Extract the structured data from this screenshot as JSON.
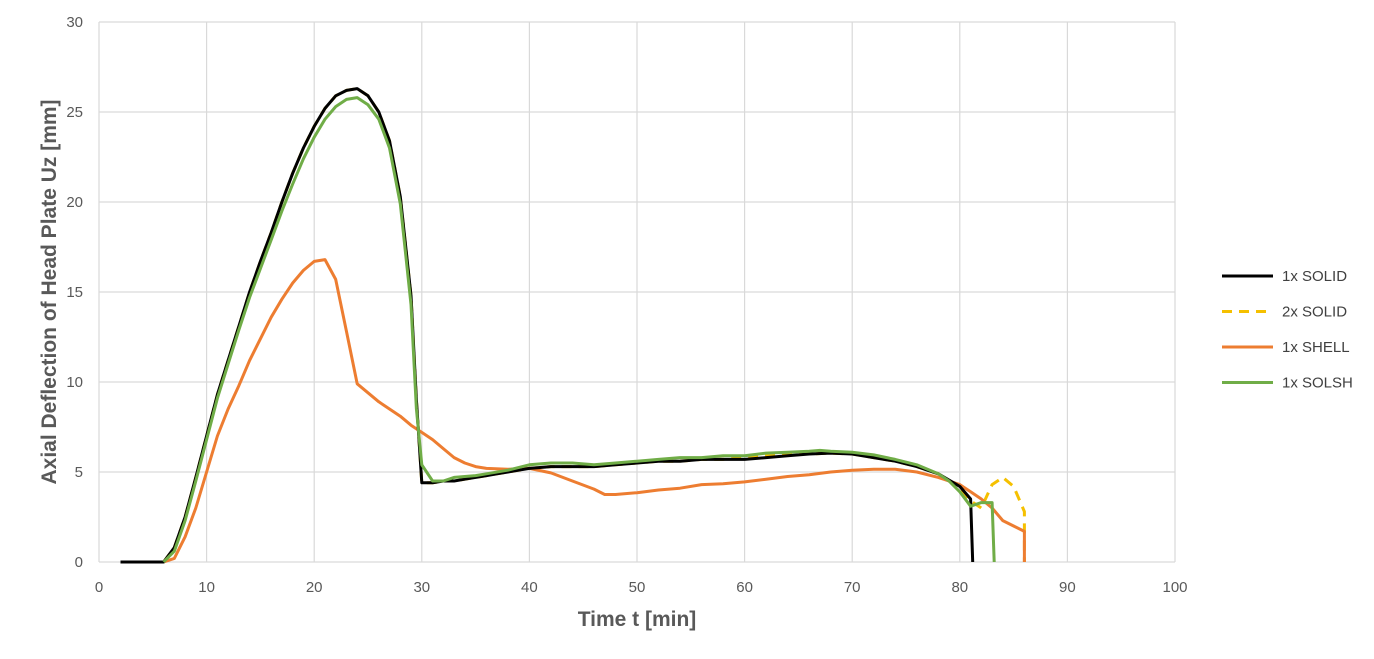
{
  "chart_data": {
    "type": "line",
    "title": "",
    "xlabel": "Time t [min]",
    "ylabel": "Axial Deflection of Head Plate Uz [mm]",
    "xlim": [
      0,
      100
    ],
    "ylim": [
      0,
      30
    ],
    "x_ticks": [
      "0",
      "10",
      "20",
      "30",
      "40",
      "50",
      "60",
      "70",
      "80",
      "90",
      "100"
    ],
    "y_ticks": [
      "0",
      "5",
      "10",
      "15",
      "20",
      "25",
      "30"
    ],
    "grid": true,
    "legend_position": "right",
    "series": [
      {
        "name": "1x SOLID",
        "color": "#000000",
        "dash": "solid",
        "points": [
          [
            2,
            0
          ],
          [
            6,
            0
          ],
          [
            7,
            0.8
          ],
          [
            8,
            2.5
          ],
          [
            9,
            4.7
          ],
          [
            10,
            7
          ],
          [
            11,
            9.3
          ],
          [
            12,
            11.2
          ],
          [
            13,
            13.1
          ],
          [
            14,
            15
          ],
          [
            15,
            16.7
          ],
          [
            16,
            18.3
          ],
          [
            17,
            20
          ],
          [
            18,
            21.6
          ],
          [
            19,
            23
          ],
          [
            20,
            24.2
          ],
          [
            21,
            25.2
          ],
          [
            22,
            25.9
          ],
          [
            23,
            26.2
          ],
          [
            24,
            26.3
          ],
          [
            25,
            25.9
          ],
          [
            26,
            25
          ],
          [
            27,
            23.4
          ],
          [
            28,
            20.3
          ],
          [
            29,
            14.8
          ],
          [
            29.5,
            9
          ],
          [
            30,
            4.4
          ],
          [
            31,
            4.4
          ],
          [
            32,
            4.5
          ],
          [
            33,
            4.5
          ],
          [
            34,
            4.6
          ],
          [
            35,
            4.7
          ],
          [
            36,
            4.8
          ],
          [
            37,
            4.9
          ],
          [
            38,
            5
          ],
          [
            39,
            5.1
          ],
          [
            40,
            5.2
          ],
          [
            42,
            5.3
          ],
          [
            44,
            5.3
          ],
          [
            46,
            5.3
          ],
          [
            48,
            5.4
          ],
          [
            50,
            5.5
          ],
          [
            52,
            5.6
          ],
          [
            54,
            5.6
          ],
          [
            56,
            5.7
          ],
          [
            58,
            5.7
          ],
          [
            60,
            5.7
          ],
          [
            62,
            5.8
          ],
          [
            64,
            5.9
          ],
          [
            66,
            6
          ],
          [
            68,
            6.05
          ],
          [
            70,
            6
          ],
          [
            72,
            5.8
          ],
          [
            74,
            5.6
          ],
          [
            76,
            5.3
          ],
          [
            78,
            4.9
          ],
          [
            80,
            4.2
          ],
          [
            81,
            3.5
          ],
          [
            81.2,
            0
          ]
        ]
      },
      {
        "name": "2x SOLID",
        "color": "#F5C000",
        "dash": "dashed",
        "points": [
          [
            6,
            0
          ],
          [
            7,
            0.8
          ],
          [
            8,
            2.5
          ],
          [
            9,
            4.7
          ],
          [
            10,
            7
          ],
          [
            11,
            9.3
          ],
          [
            12,
            11.2
          ],
          [
            13,
            13.1
          ],
          [
            14,
            15
          ],
          [
            15,
            16.7
          ],
          [
            16,
            18.3
          ],
          [
            17,
            20
          ],
          [
            18,
            21.6
          ],
          [
            19,
            23
          ],
          [
            20,
            24.2
          ],
          [
            21,
            25.2
          ],
          [
            22,
            25.9
          ],
          [
            23,
            26.2
          ],
          [
            24,
            26.3
          ],
          [
            25,
            25.9
          ],
          [
            26,
            25
          ],
          [
            27,
            23.4
          ],
          [
            28,
            20.3
          ],
          [
            29,
            14.8
          ],
          [
            29.5,
            9
          ],
          [
            30,
            4.4
          ],
          [
            31,
            4.4
          ],
          [
            32,
            4.5
          ],
          [
            33,
            4.5
          ],
          [
            34,
            4.6
          ],
          [
            35,
            4.7
          ],
          [
            36,
            4.8
          ],
          [
            37,
            4.9
          ],
          [
            38,
            5
          ],
          [
            39,
            5.1
          ],
          [
            40,
            5.2
          ],
          [
            42,
            5.3
          ],
          [
            44,
            5.3
          ],
          [
            46,
            5.3
          ],
          [
            48,
            5.4
          ],
          [
            50,
            5.5
          ],
          [
            52,
            5.6
          ],
          [
            54,
            5.6
          ],
          [
            56,
            5.7
          ],
          [
            58,
            5.7
          ],
          [
            60,
            5.8
          ],
          [
            62,
            5.9
          ],
          [
            64,
            6
          ],
          [
            66,
            6
          ],
          [
            68,
            6.05
          ],
          [
            70,
            6
          ],
          [
            72,
            5.8
          ],
          [
            74,
            5.6
          ],
          [
            76,
            5.3
          ],
          [
            78,
            4.9
          ],
          [
            80,
            4.1
          ],
          [
            81,
            3.4
          ],
          [
            82,
            3
          ],
          [
            83,
            4.3
          ],
          [
            84,
            4.7
          ],
          [
            85,
            4.2
          ],
          [
            86,
            2.8
          ],
          [
            86,
            0
          ]
        ]
      },
      {
        "name": "1x SHELL",
        "color": "#ED7D31",
        "dash": "solid",
        "points": [
          [
            6,
            0
          ],
          [
            7,
            0.2
          ],
          [
            8,
            1.4
          ],
          [
            9,
            3
          ],
          [
            10,
            5
          ],
          [
            11,
            7
          ],
          [
            12,
            8.5
          ],
          [
            13,
            9.8
          ],
          [
            14,
            11.2
          ],
          [
            15,
            12.4
          ],
          [
            16,
            13.6
          ],
          [
            17,
            14.6
          ],
          [
            18,
            15.5
          ],
          [
            19,
            16.2
          ],
          [
            20,
            16.7
          ],
          [
            21,
            16.8
          ],
          [
            22,
            15.7
          ],
          [
            23,
            12.8
          ],
          [
            24,
            9.9
          ],
          [
            25,
            9.4
          ],
          [
            26,
            8.9
          ],
          [
            27,
            8.5
          ],
          [
            28,
            8.1
          ],
          [
            29,
            7.6
          ],
          [
            30,
            7.2
          ],
          [
            31,
            6.8
          ],
          [
            32,
            6.3
          ],
          [
            33,
            5.8
          ],
          [
            34,
            5.5
          ],
          [
            35,
            5.3
          ],
          [
            36,
            5.2
          ],
          [
            38,
            5.15
          ],
          [
            40,
            5.2
          ],
          [
            42,
            4.95
          ],
          [
            44,
            4.5
          ],
          [
            46,
            4.05
          ],
          [
            47,
            3.75
          ],
          [
            48,
            3.75
          ],
          [
            50,
            3.85
          ],
          [
            52,
            4
          ],
          [
            54,
            4.1
          ],
          [
            56,
            4.3
          ],
          [
            58,
            4.35
          ],
          [
            60,
            4.45
          ],
          [
            62,
            4.6
          ],
          [
            64,
            4.75
          ],
          [
            66,
            4.85
          ],
          [
            68,
            5
          ],
          [
            70,
            5.1
          ],
          [
            72,
            5.15
          ],
          [
            74,
            5.15
          ],
          [
            76,
            5
          ],
          [
            78,
            4.7
          ],
          [
            80,
            4.3
          ],
          [
            81,
            3.9
          ],
          [
            82,
            3.5
          ],
          [
            83,
            3
          ],
          [
            84,
            2.3
          ],
          [
            85,
            2
          ],
          [
            86,
            1.7
          ],
          [
            86,
            0
          ]
        ]
      },
      {
        "name": "1x SOLSH",
        "color": "#70AD47",
        "dash": "solid",
        "points": [
          [
            6,
            0
          ],
          [
            7,
            0.6
          ],
          [
            8,
            2.3
          ],
          [
            9,
            4.5
          ],
          [
            10,
            6.8
          ],
          [
            11,
            9.1
          ],
          [
            12,
            11
          ],
          [
            13,
            12.9
          ],
          [
            14,
            14.7
          ],
          [
            15,
            16.3
          ],
          [
            16,
            17.9
          ],
          [
            17,
            19.5
          ],
          [
            18,
            21
          ],
          [
            19,
            22.4
          ],
          [
            20,
            23.6
          ],
          [
            21,
            24.6
          ],
          [
            22,
            25.3
          ],
          [
            23,
            25.7
          ],
          [
            24,
            25.8
          ],
          [
            25,
            25.4
          ],
          [
            26,
            24.6
          ],
          [
            27,
            23
          ],
          [
            28,
            19.9
          ],
          [
            29,
            14.3
          ],
          [
            29.5,
            8.5
          ],
          [
            30,
            5.4
          ],
          [
            31,
            4.5
          ],
          [
            32,
            4.5
          ],
          [
            33,
            4.7
          ],
          [
            34,
            4.75
          ],
          [
            35,
            4.8
          ],
          [
            36,
            4.9
          ],
          [
            38,
            5.1
          ],
          [
            40,
            5.4
          ],
          [
            42,
            5.5
          ],
          [
            44,
            5.5
          ],
          [
            46,
            5.4
          ],
          [
            48,
            5.5
          ],
          [
            50,
            5.6
          ],
          [
            52,
            5.7
          ],
          [
            54,
            5.8
          ],
          [
            56,
            5.8
          ],
          [
            58,
            5.9
          ],
          [
            60,
            5.9
          ],
          [
            62,
            6.05
          ],
          [
            64,
            6.1
          ],
          [
            66,
            6.15
          ],
          [
            67,
            6.2
          ],
          [
            68,
            6.15
          ],
          [
            70,
            6.1
          ],
          [
            72,
            5.95
          ],
          [
            74,
            5.7
          ],
          [
            76,
            5.4
          ],
          [
            78,
            4.9
          ],
          [
            79,
            4.5
          ],
          [
            80,
            3.9
          ],
          [
            81,
            3.1
          ],
          [
            82,
            3.3
          ],
          [
            83,
            3.3
          ],
          [
            83.2,
            0
          ]
        ]
      }
    ]
  }
}
